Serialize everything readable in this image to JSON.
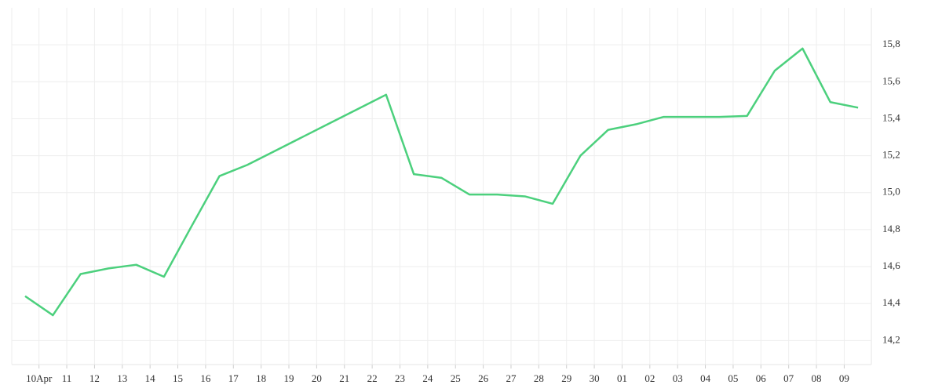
{
  "chart_data": {
    "type": "line",
    "categories": [
      "10Apr",
      "11",
      "12",
      "13",
      "14",
      "15",
      "16",
      "17",
      "18",
      "19",
      "20",
      "21",
      "22",
      "23",
      "24",
      "25",
      "26",
      "27",
      "28",
      "29",
      "30",
      "01",
      "02",
      "03",
      "04",
      "05",
      "06",
      "07",
      "08",
      "09",
      null
    ],
    "series": [
      {
        "color": "#4cd07d",
        "values": [
          14.44,
          14.337,
          14.56,
          14.59,
          14.61,
          14.545,
          14.82,
          15.09,
          15.15,
          15.226,
          15.302,
          15.378,
          15.454,
          15.53,
          15.1,
          15.08,
          14.99,
          14.99,
          14.98,
          14.94,
          15.2,
          15.34,
          15.37,
          15.41,
          15.41,
          15.41,
          15.415,
          15.66,
          15.78,
          15.49,
          15.46
        ]
      }
    ],
    "ylim": [
      14.07,
      16.0
    ],
    "yticks": [
      {
        "value": 14.2,
        "label": "14,2"
      },
      {
        "value": 14.4,
        "label": "14,4"
      },
      {
        "value": 14.6,
        "label": "14,6"
      },
      {
        "value": 14.8,
        "label": "14,8"
      },
      {
        "value": 15.0,
        "label": "15,0"
      },
      {
        "value": 15.2,
        "label": "15,2"
      },
      {
        "value": 15.4,
        "label": "15,4"
      },
      {
        "value": 15.6,
        "label": "15,6"
      },
      {
        "value": 15.8,
        "label": "15,8"
      }
    ],
    "grid": true
  }
}
